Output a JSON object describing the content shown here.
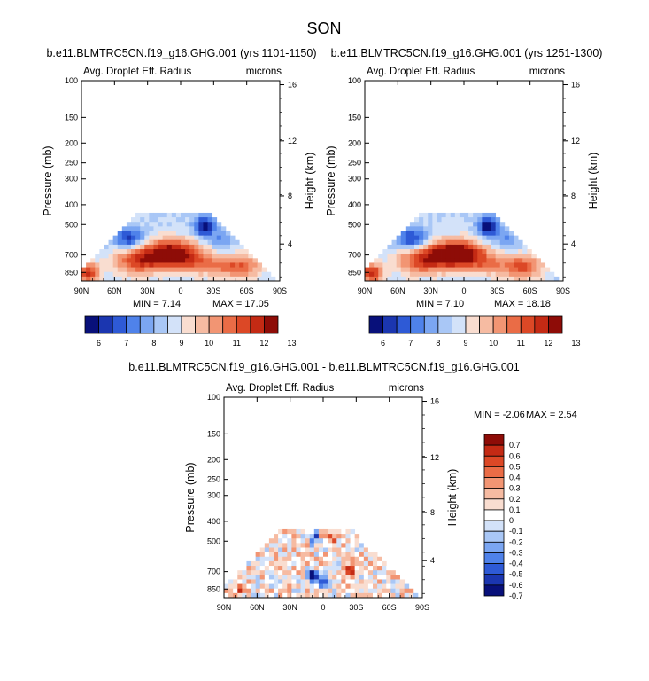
{
  "page": {
    "title": "SON",
    "top_left_title": "b.e11.BLMTRC5CN.f19_g16.GHG.001 (yrs 1101-1150)",
    "top_right_title": "b.e11.BLMTRC5CN.f19_g16.GHG.001 (yrs 1251-1300)",
    "diff_title": "b.e11.BLMTRC5CN.f19_g16.GHG.001 - b.e11.BLMTRC5CN.f19_g16.GHG.001"
  },
  "chart_data": [
    {
      "id": "panel1",
      "type": "heatmap",
      "left_label": "Avg. Droplet Eff. Radius",
      "right_label": "microns",
      "ylabel": "Pressure (mb)",
      "y2label": "Height (km)",
      "x_ticks": [
        "90N",
        "60N",
        "30N",
        "0",
        "30S",
        "60S",
        "90S"
      ],
      "y_ticks": [
        "100",
        "150",
        "200",
        "250",
        "300",
        "400",
        "500",
        "700",
        "850"
      ],
      "y2_ticks": [
        "16",
        "12",
        "8",
        "4"
      ],
      "min_label": "MIN =  7.14",
      "max_label": "MAX =  17.05",
      "colorbar_ticks": [
        "6",
        "7",
        "8",
        "9",
        "10",
        "11",
        "12",
        "13"
      ],
      "field_range": [
        6,
        13
      ]
    },
    {
      "id": "panel2",
      "type": "heatmap",
      "left_label": "Avg. Droplet Eff. Radius",
      "right_label": "microns",
      "ylabel": "Pressure (mb)",
      "y2label": "Height (km)",
      "x_ticks": [
        "90N",
        "60N",
        "30N",
        "0",
        "30S",
        "60S",
        "90S"
      ],
      "y_ticks": [
        "100",
        "150",
        "200",
        "250",
        "300",
        "400",
        "500",
        "700",
        "850"
      ],
      "y2_ticks": [
        "16",
        "12",
        "8",
        "4"
      ],
      "min_label": "MIN =  7.10",
      "max_label": "MAX =  18.18",
      "colorbar_ticks": [
        "6",
        "7",
        "8",
        "9",
        "10",
        "11",
        "12",
        "13"
      ],
      "field_range": [
        6,
        13
      ]
    },
    {
      "id": "panel3",
      "type": "heatmap",
      "left_label": "Avg. Droplet Eff. Radius",
      "right_label": "microns",
      "ylabel": "Pressure (mb)",
      "y2label": "Height (km)",
      "x_ticks": [
        "90N",
        "60N",
        "30N",
        "0",
        "30S",
        "60S",
        "90S"
      ],
      "y_ticks": [
        "100",
        "150",
        "200",
        "250",
        "300",
        "400",
        "500",
        "700",
        "850"
      ],
      "y2_ticks": [
        "16",
        "12",
        "8",
        "4"
      ],
      "min_label": "MIN = -2.06",
      "max_label": "MAX =  2.54",
      "colorbar_ticks": [
        "0.7",
        "0.6",
        "0.5",
        "0.4",
        "0.3",
        "0.2",
        "0.1",
        "0",
        "-0.1",
        "-0.2",
        "-0.3",
        "-0.4",
        "-0.5",
        "-0.6",
        "-0.7"
      ],
      "field_range": [
        -0.7,
        0.7
      ]
    }
  ],
  "colors": {
    "panel_colorbar": [
      "#08107a",
      "#1b36b0",
      "#2e5ad6",
      "#4f82ea",
      "#7ba6f2",
      "#a9c7f6",
      "#d3e2f9",
      "#f9ddd0",
      "#f6bba2",
      "#f29573",
      "#ea6c46",
      "#dc4826",
      "#c42a14",
      "#8e0c07"
    ],
    "diff_colorbar": [
      "#8e0c07",
      "#c42a14",
      "#dc4826",
      "#ea6c46",
      "#f29573",
      "#f6bba2",
      "#f9ddd0",
      "#ffffff",
      "#d3e2f9",
      "#a9c7f6",
      "#7ba6f2",
      "#4f82ea",
      "#2e5ad6",
      "#1b36b0",
      "#08107a"
    ]
  }
}
